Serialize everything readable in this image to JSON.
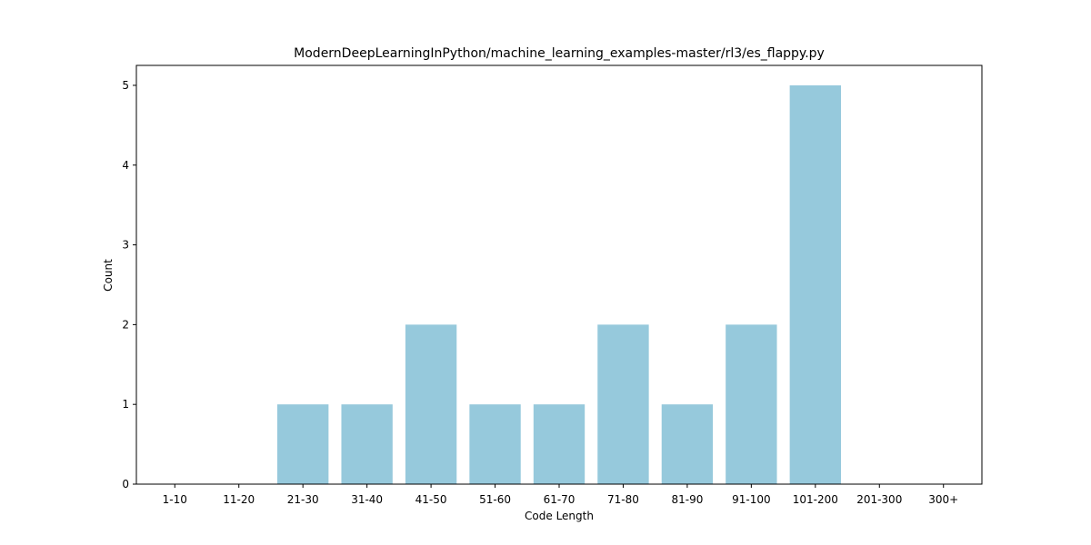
{
  "chart_data": {
    "type": "bar",
    "title": "ModernDeepLearningInPython/machine_learning_examples-master/rl3/es_flappy.py",
    "xlabel": "Code Length",
    "ylabel": "Count",
    "categories": [
      "1-10",
      "11-20",
      "21-30",
      "31-40",
      "41-50",
      "51-60",
      "61-70",
      "71-80",
      "81-90",
      "91-100",
      "101-200",
      "201-300",
      "300+"
    ],
    "values": [
      0,
      0,
      1,
      1,
      2,
      1,
      1,
      2,
      1,
      2,
      5,
      0,
      0
    ],
    "ylim": [
      0,
      5.25
    ],
    "yticks": [
      0,
      1,
      2,
      3,
      4,
      5
    ],
    "bar_color": "#96c9dc",
    "grid": false,
    "legend": "none"
  }
}
